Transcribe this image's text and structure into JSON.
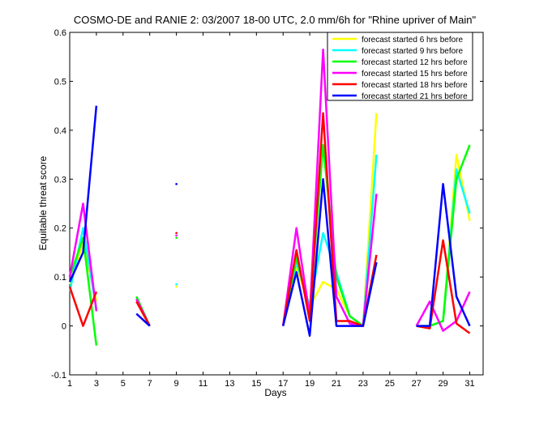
{
  "chart_data": {
    "type": "line",
    "title": "COSMO-DE and RANIE 2: 03/2007 18-00 UTC, 2.0 mm/6h for \"Rhine upriver of Main\"",
    "xlabel": "Days",
    "ylabel": "Equitable threat score",
    "xlim": [
      1,
      32
    ],
    "ylim": [
      -0.1,
      0.6
    ],
    "xticks": [
      1,
      3,
      5,
      7,
      9,
      11,
      13,
      15,
      17,
      19,
      21,
      23,
      25,
      27,
      29,
      31
    ],
    "yticks": [
      -0.1,
      0,
      0.1,
      0.2,
      0.3,
      0.4,
      0.5,
      0.6
    ],
    "grid": false,
    "legend_position": "top-right",
    "series": [
      {
        "name": "forecast started 6 hrs before",
        "color": "#ffff00",
        "points": [
          [
            1,
            0.085
          ],
          [
            2,
            0.17
          ],
          [
            3,
            0.05
          ],
          null,
          [
            6,
            0.06
          ],
          [
            7,
            0.0
          ],
          null,
          [
            9,
            0.08
          ],
          null,
          [
            17,
            0.0
          ],
          [
            18,
            0.12
          ],
          [
            19,
            0.04
          ],
          [
            20,
            0.09
          ],
          [
            21,
            0.075
          ],
          [
            22,
            0.02
          ],
          [
            23,
            0.0
          ],
          [
            24,
            0.435
          ],
          null,
          [
            27,
            0.0
          ],
          [
            28,
            0.0
          ],
          [
            29,
            0.01
          ],
          [
            30,
            0.35
          ],
          [
            31,
            0.215
          ]
        ]
      },
      {
        "name": "forecast started 9 hrs before",
        "color": "#00ffff",
        "points": [
          [
            1,
            0.07
          ],
          [
            2,
            0.2
          ],
          [
            3,
            0.035
          ],
          null,
          [
            6,
            0.06
          ],
          [
            7,
            0.0
          ],
          null,
          [
            9,
            0.085
          ],
          null,
          [
            17,
            0.0
          ],
          [
            18,
            0.13
          ],
          [
            19,
            0.04
          ],
          [
            20,
            0.19
          ],
          [
            21,
            0.11
          ],
          [
            22,
            0.02
          ],
          [
            23,
            0.0
          ],
          [
            24,
            0.35
          ],
          null,
          [
            27,
            0.0
          ],
          [
            28,
            0.0
          ],
          [
            29,
            0.01
          ],
          [
            30,
            0.32
          ],
          [
            31,
            0.23
          ]
        ]
      },
      {
        "name": "forecast started 12 hrs before",
        "color": "#00ff00",
        "points": [
          [
            1,
            0.1
          ],
          [
            2,
            0.18
          ],
          [
            3,
            -0.04
          ],
          null,
          [
            6,
            0.06
          ],
          [
            7,
            0.0
          ],
          null,
          [
            9,
            0.18
          ],
          null,
          [
            17,
            0.0
          ],
          [
            18,
            0.14
          ],
          [
            19,
            0.03
          ],
          [
            20,
            0.37
          ],
          [
            21,
            0.1
          ],
          [
            22,
            0.02
          ],
          [
            23,
            0.0
          ],
          [
            24,
            0.13
          ],
          null,
          [
            27,
            0.0
          ],
          [
            28,
            0.0
          ],
          [
            29,
            0.01
          ],
          [
            30,
            0.3
          ],
          [
            31,
            0.37
          ]
        ]
      },
      {
        "name": "forecast started 15 hrs before",
        "color": "#ff00ff",
        "points": [
          [
            1,
            0.1
          ],
          [
            2,
            0.25
          ],
          [
            3,
            0.03
          ],
          null,
          [
            6,
            0.055
          ],
          [
            7,
            0.0
          ],
          null,
          [
            9,
            0.185
          ],
          null,
          [
            17,
            0.0
          ],
          [
            18,
            0.2
          ],
          [
            19,
            0.02
          ],
          [
            20,
            0.565
          ],
          [
            21,
            0.06
          ],
          [
            22,
            0.005
          ],
          [
            23,
            0.0
          ],
          [
            24,
            0.27
          ],
          null,
          [
            27,
            0.0
          ],
          [
            28,
            0.05
          ],
          [
            29,
            -0.01
          ],
          [
            30,
            0.01
          ],
          [
            31,
            0.07
          ]
        ]
      },
      {
        "name": "forecast started 18 hrs before",
        "color": "#ff0000",
        "points": [
          [
            1,
            0.08
          ],
          [
            2,
            0.0
          ],
          [
            3,
            0.07
          ],
          null,
          [
            6,
            0.05
          ],
          [
            7,
            0.0
          ],
          null,
          [
            9,
            0.19
          ],
          null,
          [
            17,
            0.0
          ],
          [
            18,
            0.155
          ],
          [
            19,
            0.01
          ],
          [
            20,
            0.435
          ],
          [
            21,
            0.01
          ],
          [
            22,
            0.01
          ],
          [
            23,
            0.0
          ],
          [
            24,
            0.145
          ],
          null,
          [
            27,
            0.0
          ],
          [
            28,
            -0.005
          ],
          [
            29,
            0.175
          ],
          [
            30,
            0.005
          ],
          [
            31,
            -0.015
          ]
        ]
      },
      {
        "name": "forecast started 21 hrs before",
        "color": "#0000ff",
        "points": [
          [
            1,
            0.09
          ],
          [
            2,
            0.15
          ],
          [
            3,
            0.45
          ],
          null,
          [
            6,
            0.025
          ],
          [
            7,
            0.0
          ],
          null,
          [
            9,
            0.29
          ],
          null,
          [
            17,
            0.0
          ],
          [
            18,
            0.11
          ],
          [
            19,
            -0.02
          ],
          [
            20,
            0.3
          ],
          [
            21,
            0.0
          ],
          [
            22,
            0.0
          ],
          [
            23,
            0.0
          ],
          [
            24,
            0.13
          ],
          null,
          [
            27,
            0.0
          ],
          [
            28,
            0.0
          ],
          [
            29,
            0.29
          ],
          [
            30,
            0.06
          ],
          [
            31,
            0.0
          ]
        ]
      }
    ]
  }
}
